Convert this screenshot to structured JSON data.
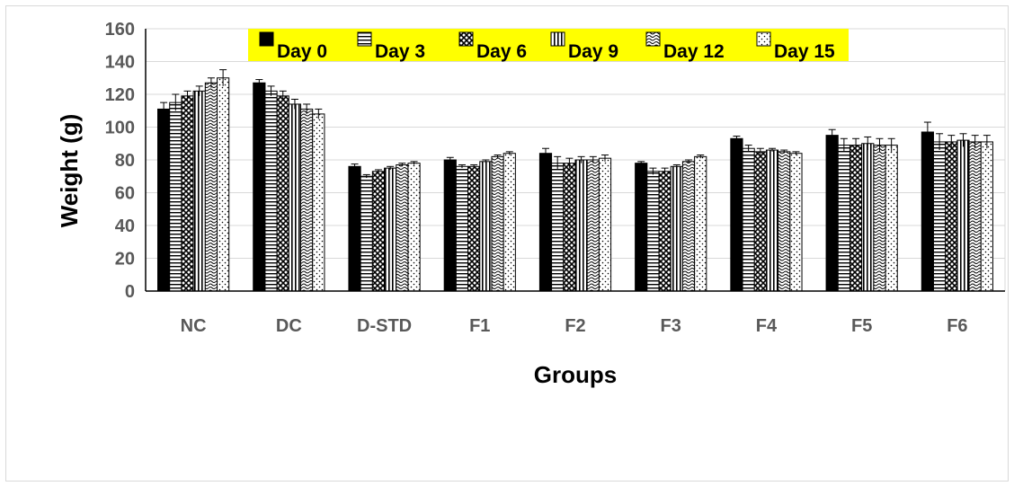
{
  "chart_data": {
    "type": "bar",
    "title": "",
    "xlabel": "Groups",
    "ylabel": "Weight (g)",
    "ylim": [
      0,
      160
    ],
    "yticks": [
      0,
      20,
      40,
      60,
      80,
      100,
      120,
      140,
      160
    ],
    "grid": true,
    "legend_position": "top",
    "legend_background": "#ffff00",
    "categories": [
      "NC",
      "DC",
      "D-STD",
      "F1",
      "F2",
      "F3",
      "F4",
      "F5",
      "F6"
    ],
    "series": [
      {
        "name": "Day 0",
        "values": [
          111,
          127,
          76,
          80,
          84,
          78,
          93,
          95,
          97
        ],
        "errors": [
          4,
          2,
          1.5,
          1.5,
          3,
          1,
          1.5,
          3.5,
          6
        ],
        "pattern": "solid"
      },
      {
        "name": "Day 3",
        "values": [
          115,
          122,
          70,
          76,
          78,
          73,
          87,
          89,
          91
        ],
        "errors": [
          5,
          3,
          1,
          1,
          4,
          2,
          2,
          4,
          5
        ],
        "pattern": "hlines"
      },
      {
        "name": "Day 6",
        "values": [
          119,
          119,
          73,
          76,
          78,
          73,
          85,
          89,
          91
        ],
        "errors": [
          3,
          3,
          1,
          1,
          3,
          2,
          2,
          4,
          4
        ],
        "pattern": "crosshatch"
      },
      {
        "name": "Day 9",
        "values": [
          122,
          114,
          75,
          79,
          80,
          76,
          86,
          90,
          92
        ],
        "errors": [
          3,
          3,
          1,
          1,
          2,
          1,
          1,
          4,
          4
        ],
        "pattern": "vlines"
      },
      {
        "name": "Day 12",
        "values": [
          127,
          111,
          77,
          82,
          80,
          79,
          85,
          89,
          91
        ],
        "errors": [
          3,
          3,
          1,
          1,
          2,
          1,
          1,
          4,
          4
        ],
        "pattern": "waves"
      },
      {
        "name": "Day 15",
        "values": [
          130,
          108,
          78,
          84,
          81,
          82,
          84,
          89,
          91
        ],
        "errors": [
          5,
          3,
          1,
          1,
          2,
          1,
          1,
          4,
          4
        ],
        "pattern": "dots"
      }
    ]
  }
}
